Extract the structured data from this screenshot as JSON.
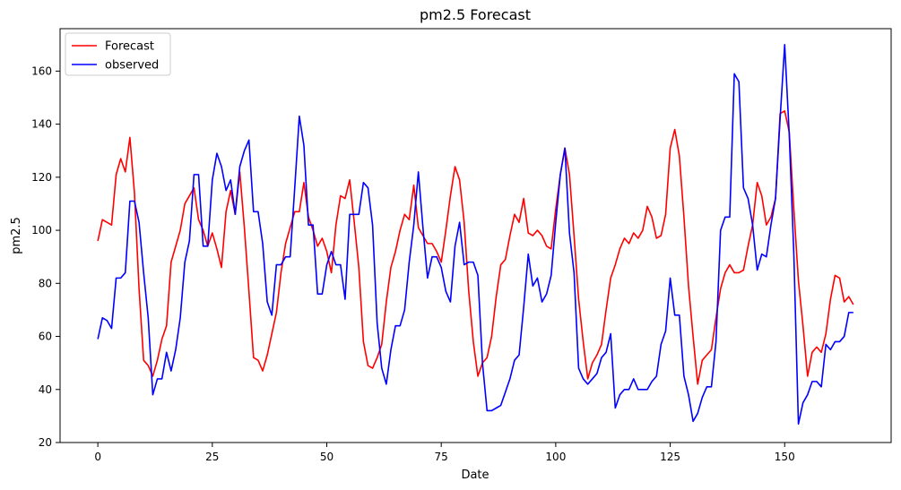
{
  "chart_data": {
    "type": "line",
    "title": "pm2.5 Forecast",
    "xlabel": "Date",
    "ylabel": "pm2.5",
    "xlim": [
      -8.25,
      173.25
    ],
    "ylim": [
      20,
      176
    ],
    "x_ticks": [
      0,
      25,
      50,
      75,
      100,
      125,
      150
    ],
    "y_ticks": [
      20,
      40,
      60,
      80,
      100,
      120,
      140,
      160
    ],
    "grid": false,
    "legend_position": "upper-left",
    "series": [
      {
        "name": "Forecast",
        "color": "#ff0000",
        "x": [
          0,
          1,
          2,
          3,
          4,
          5,
          6,
          7,
          8,
          9,
          10,
          11,
          12,
          13,
          14,
          15,
          16,
          17,
          18,
          19,
          20,
          21,
          22,
          23,
          24,
          25,
          26,
          27,
          28,
          29,
          30,
          31,
          32,
          33,
          34,
          35,
          36,
          37,
          38,
          39,
          40,
          41,
          42,
          43,
          44,
          45,
          46,
          47,
          48,
          49,
          50,
          51,
          52,
          53,
          54,
          55,
          56,
          57,
          58,
          59,
          60,
          61,
          62,
          63,
          64,
          65,
          66,
          67,
          68,
          69,
          70,
          71,
          72,
          73,
          74,
          75,
          76,
          77,
          78,
          79,
          80,
          81,
          82,
          83,
          84,
          85,
          86,
          87,
          88,
          89,
          90,
          91,
          92,
          93,
          94,
          95,
          96,
          97,
          98,
          99,
          100,
          101,
          102,
          103,
          104,
          105,
          106,
          107,
          108,
          109,
          110,
          111,
          112,
          113,
          114,
          115,
          116,
          117,
          118,
          119,
          120,
          121,
          122,
          123,
          124,
          125,
          126,
          127,
          128,
          129,
          130,
          131,
          132,
          133,
          134,
          135,
          136,
          137,
          138,
          139,
          140,
          141,
          142,
          143,
          144,
          145,
          146,
          147,
          148,
          149,
          150,
          151,
          152,
          153,
          154,
          155,
          156,
          157,
          158,
          159,
          160,
          161,
          162,
          163,
          164,
          165
        ],
        "values": [
          96,
          104,
          103,
          102,
          121,
          127,
          122,
          135,
          114,
          78,
          51,
          49,
          45,
          51,
          59,
          64,
          88,
          94,
          100,
          110,
          113,
          116,
          104,
          100,
          94,
          99,
          93,
          86,
          107,
          115,
          106,
          122,
          101,
          77,
          52,
          51,
          47,
          53,
          61,
          69,
          84,
          95,
          101,
          107,
          107,
          118,
          105,
          100,
          94,
          97,
          92,
          84,
          102,
          113,
          112,
          119,
          103,
          86,
          58,
          49,
          48,
          52,
          57,
          73,
          86,
          92,
          100,
          106,
          104,
          117,
          101,
          98,
          95,
          95,
          92,
          88,
          100,
          113,
          124,
          119,
          103,
          77,
          58,
          45,
          50,
          52,
          60,
          75,
          87,
          89,
          98,
          106,
          103,
          112,
          99,
          98,
          100,
          98,
          94,
          93,
          108,
          121,
          131,
          121,
          98,
          74,
          58,
          44,
          50,
          53,
          57,
          70,
          82,
          87,
          93,
          97,
          95,
          99,
          97,
          100,
          109,
          105,
          97,
          98,
          106,
          131,
          138,
          128,
          105,
          79,
          60,
          42,
          51,
          53,
          55,
          67,
          78,
          84,
          87,
          84,
          84,
          85,
          94,
          102,
          118,
          113,
          102,
          105,
          112,
          144,
          145,
          137,
          108,
          81,
          64,
          45,
          54,
          56,
          54,
          61,
          74,
          83,
          82,
          73,
          75,
          72
        ]
      },
      {
        "name": "observed",
        "color": "#0000ff",
        "x": [
          0,
          1,
          2,
          3,
          4,
          5,
          6,
          7,
          8,
          9,
          10,
          11,
          12,
          13,
          14,
          15,
          16,
          17,
          18,
          19,
          20,
          21,
          22,
          23,
          24,
          25,
          26,
          27,
          28,
          29,
          30,
          31,
          32,
          33,
          34,
          35,
          36,
          37,
          38,
          39,
          40,
          41,
          42,
          43,
          44,
          45,
          46,
          47,
          48,
          49,
          50,
          51,
          52,
          53,
          54,
          55,
          56,
          57,
          58,
          59,
          60,
          61,
          62,
          63,
          64,
          65,
          66,
          67,
          68,
          69,
          70,
          71,
          72,
          73,
          74,
          75,
          76,
          77,
          78,
          79,
          80,
          81,
          82,
          83,
          84,
          85,
          86,
          87,
          88,
          89,
          90,
          91,
          92,
          93,
          94,
          95,
          96,
          97,
          98,
          99,
          100,
          101,
          102,
          103,
          104,
          105,
          106,
          107,
          108,
          109,
          110,
          111,
          112,
          113,
          114,
          115,
          116,
          117,
          118,
          119,
          120,
          121,
          122,
          123,
          124,
          125,
          126,
          127,
          128,
          129,
          130,
          131,
          132,
          133,
          134,
          135,
          136,
          137,
          138,
          139,
          140,
          141,
          142,
          143,
          144,
          145,
          146,
          147,
          148,
          149,
          150,
          151,
          152,
          153,
          154,
          155,
          156,
          157,
          158,
          159,
          160,
          161,
          162,
          163,
          164,
          165
        ],
        "values": [
          59,
          67,
          66,
          63,
          82,
          82,
          84,
          111,
          111,
          103,
          84,
          67,
          38,
          44,
          44,
          54,
          47,
          55,
          67,
          88,
          96,
          121,
          121,
          94,
          94,
          119,
          129,
          124,
          115,
          119,
          106,
          124,
          130,
          134,
          107,
          107,
          95,
          73,
          68,
          87,
          87,
          90,
          90,
          116,
          143,
          132,
          102,
          102,
          76,
          76,
          87,
          92,
          87,
          87,
          74,
          106,
          106,
          106,
          118,
          116,
          102,
          65,
          48,
          42,
          55,
          64,
          64,
          70,
          88,
          102,
          122,
          101,
          82,
          90,
          90,
          86,
          77,
          73,
          94,
          103,
          87,
          88,
          88,
          83,
          50,
          32,
          32,
          33,
          34,
          39,
          44,
          51,
          53,
          71,
          91,
          79,
          82,
          73,
          76,
          83,
          103,
          121,
          131,
          99,
          84,
          48,
          44,
          42,
          44,
          46,
          52,
          54,
          61,
          33,
          38,
          40,
          40,
          44,
          40,
          40,
          40,
          43,
          45,
          57,
          62,
          82,
          68,
          68,
          45,
          38,
          28,
          31,
          37,
          41,
          41,
          58,
          100,
          105,
          105,
          159,
          156,
          116,
          112,
          102,
          85,
          91,
          90,
          102,
          112,
          142,
          170,
          136,
          91,
          27,
          35,
          38,
          43,
          43,
          41,
          57,
          55,
          58,
          58,
          60,
          69,
          69
        ]
      }
    ]
  }
}
